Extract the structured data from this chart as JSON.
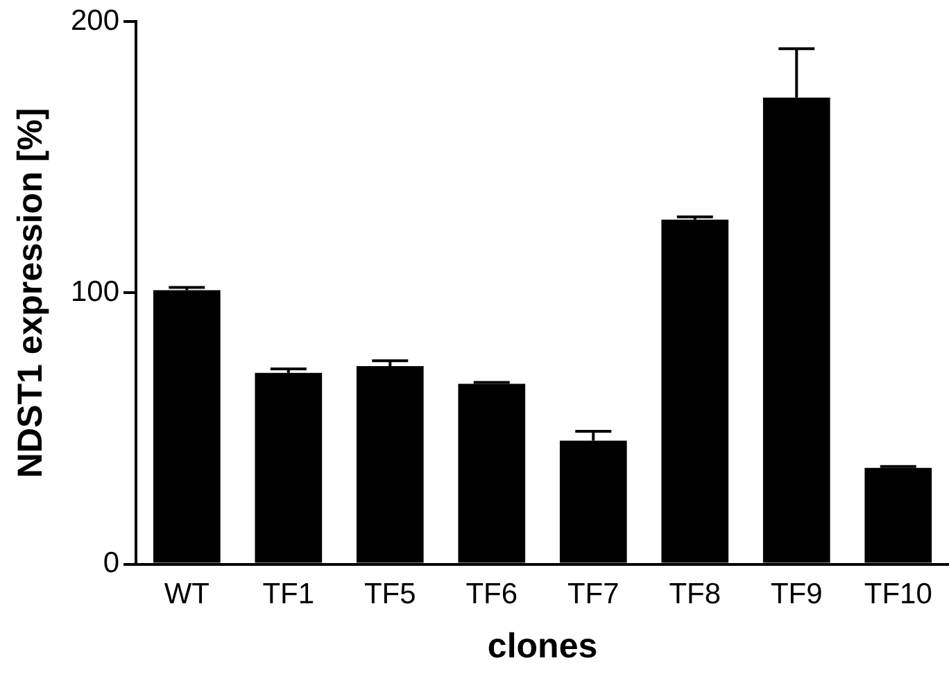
{
  "chart_data": {
    "type": "bar",
    "xlabel": "clones",
    "ylabel": "NDST1 expression [%]",
    "categories": [
      "WT",
      "TF1",
      "TF5",
      "TF6",
      "TF7",
      "TF8",
      "TF9",
      "TF10"
    ],
    "values": [
      101,
      70.5,
      73,
      66.5,
      45.5,
      127,
      172,
      35.5
    ],
    "errors": [
      [
        101,
        102
      ],
      [
        70.5,
        72
      ],
      [
        73,
        75
      ],
      [
        66.5,
        67
      ],
      [
        45.5,
        49
      ],
      [
        127,
        128
      ],
      [
        172,
        190
      ],
      [
        35.5,
        36
      ]
    ],
    "color": "#000000",
    "ylim": [
      0,
      200
    ],
    "yticks": [
      0,
      100,
      200
    ],
    "grid": false,
    "legend": false
  }
}
